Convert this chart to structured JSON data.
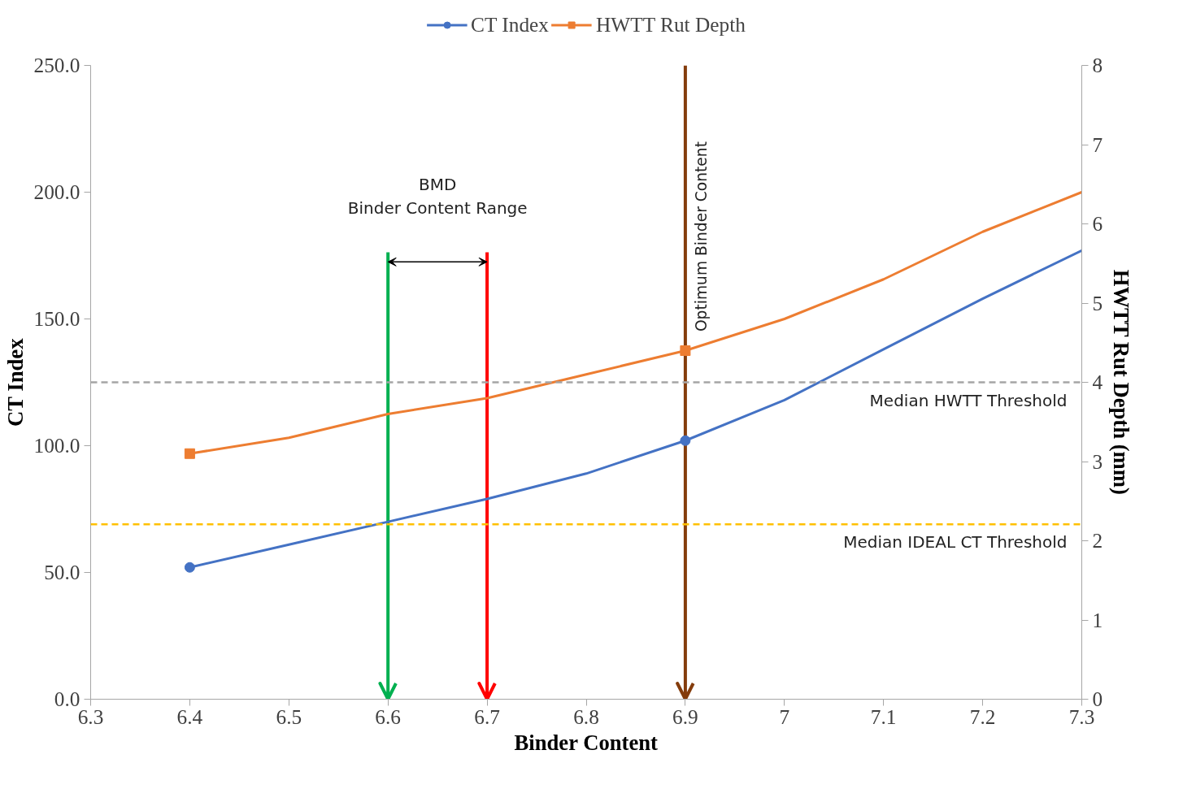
{
  "chart_data": {
    "type": "line",
    "xlabel": "Binder Content",
    "ylabel": "CT Index",
    "y2label": "HWTT Rut Depth (mm)",
    "xlim": [
      6.3,
      7.3
    ],
    "xticks": [
      6.3,
      6.4,
      6.5,
      6.6,
      6.7,
      6.8,
      6.9,
      {
        "value": 7.0,
        "label": "7"
      },
      7.1,
      7.2,
      7.3
    ],
    "ylim": [
      0,
      250
    ],
    "yticks": [
      {
        "value": 0,
        "label": "0.0"
      },
      {
        "value": 50,
        "label": "50.0"
      },
      {
        "value": 100,
        "label": "100.0"
      },
      {
        "value": 150,
        "label": "150.0"
      },
      {
        "value": 200,
        "label": "200.0"
      },
      {
        "value": 250,
        "label": "250.0"
      }
    ],
    "y2lim": [
      0,
      8
    ],
    "y2ticks": [
      0,
      1,
      2,
      3,
      4,
      5,
      6,
      7,
      8
    ],
    "series": [
      {
        "name": "CT Index",
        "type": "scatter",
        "marker": "circle",
        "color": "#4472c4",
        "x": [
          6.4,
          6.9
        ],
        "values": [
          52,
          102
        ]
      },
      {
        "color": "#4472c4",
        "x": [
          6.4,
          6.5,
          6.6,
          6.7,
          6.8,
          6.9,
          7.0,
          7.1,
          7.2,
          7.3
        ],
        "values": [
          52,
          61,
          70,
          79,
          89,
          102,
          118,
          138,
          158,
          177
        ]
      },
      {
        "name": "HWTT Rut Depth",
        "type": "scatter",
        "marker": "square",
        "axis": "y2",
        "color": "#ed7d31",
        "x": [
          6.4,
          6.9
        ],
        "values": [
          3.1,
          4.4
        ]
      },
      {
        "axis": "y2",
        "color": "#ed7d31",
        "x": [
          6.4,
          6.5,
          6.6,
          6.7,
          6.8,
          6.9,
          7.0,
          7.1,
          7.2,
          7.3
        ],
        "values": [
          3.1,
          3.3,
          3.6,
          3.8,
          4.1,
          4.4,
          4.8,
          5.3,
          5.9,
          6.4
        ]
      }
    ],
    "ref_lines": [
      {
        "axis": "y2",
        "value": 4,
        "label": "Median HWTT Threshold",
        "color": "#a5a5a5",
        "line_style": "dashed"
      },
      {
        "axis": "y",
        "value": 69,
        "label": "Median IDEAL CT Threshold",
        "color": "#ffc000",
        "line_style": "dashed"
      },
      {
        "axis": "x",
        "value": 6.6,
        "label": null,
        "color": "#00b050",
        "line_style": "solid"
      },
      {
        "axis": "x",
        "value": 6.7,
        "label": null,
        "color": "#ff0000",
        "line_style": "solid"
      },
      {
        "axis": "x",
        "value": 6.9,
        "label": "Optimum Binder Content",
        "color": "#843c0c",
        "line_style": "solid"
      }
    ],
    "annotations": [
      "BMD\nBinder Content Range"
    ],
    "legend": "top",
    "grid": false
  }
}
